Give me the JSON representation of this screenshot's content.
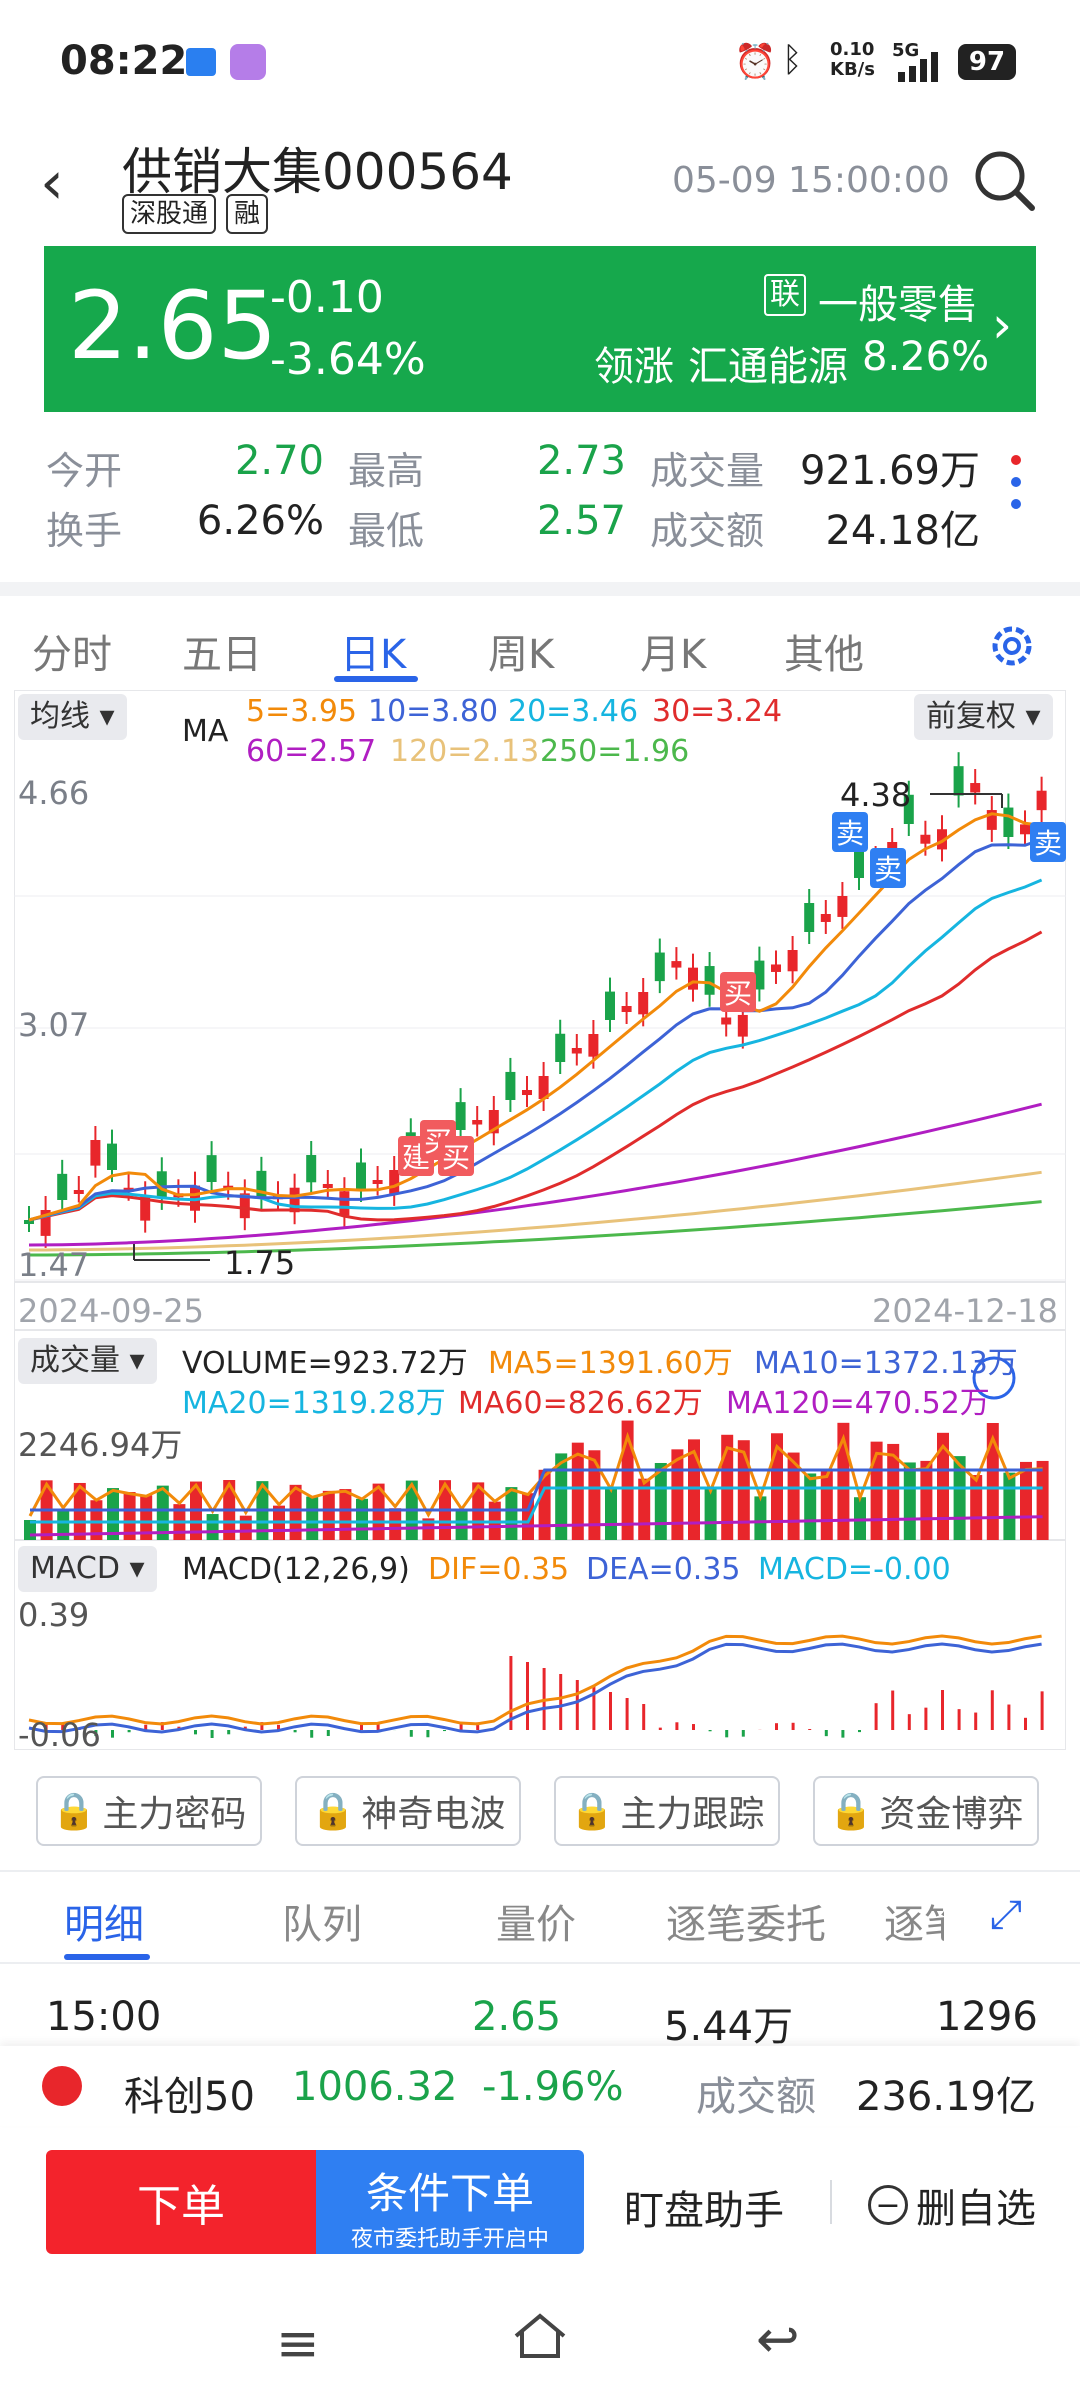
{
  "status": {
    "time": "08:22",
    "net_speed_top": "0.10",
    "net_speed_bottom": "KB/s",
    "signal": "5G",
    "battery": "97"
  },
  "header": {
    "title": "供销大集000564",
    "tag1": "深股通",
    "tag2": "融",
    "timestamp": "05-09 15:00:00"
  },
  "banner": {
    "price": "2.65",
    "change": "-0.10",
    "change_pct": "-3.64%",
    "sector_badge": "联",
    "sector": "一般零售",
    "leader_label": "领涨",
    "leader_name": "汇通能源",
    "leader_pct": "8.26%"
  },
  "stats": {
    "open_label": "今开",
    "open_value": "2.70",
    "high_label": "最高",
    "high_value": "2.73",
    "volume_label": "成交量",
    "volume_value": "921.69万",
    "turnover_label": "换手",
    "turnover_value": "6.26%",
    "low_label": "最低",
    "low_value": "2.57",
    "amount_label": "成交额",
    "amount_value": "24.18亿"
  },
  "tabs": [
    "分时",
    "五日",
    "日K",
    "周K",
    "月K",
    "其他"
  ],
  "kline": {
    "ma_selector": "均线",
    "ma_label": "MA",
    "ma5": "5=3.95",
    "ma10": "10=3.80",
    "ma20": "20=3.46",
    "ma30": "30=3.24",
    "ma60": "60=2.57",
    "ma120": "120=2.13",
    "ma250": "250=1.96",
    "adjust": "前复权",
    "y_top": "4.66",
    "y_mid": "3.07",
    "y_bottom": "1.47",
    "max_label": "4.38",
    "min_label": "1.75",
    "date_start": "2024-09-25",
    "date_end": "2024-12-18",
    "signal_sell": "卖",
    "signal_buy": "买",
    "signal_build": "建",
    "colors": {
      "up": "#e8262b",
      "down": "#1aa34a",
      "ma5": "#f28a0a",
      "ma10": "#3d63d6",
      "ma20": "#16b5e0",
      "ma30": "#e02c2c",
      "ma60": "#b01ec2",
      "ma120": "#e8c27a",
      "ma250": "#4cb84c"
    }
  },
  "volume": {
    "selector": "成交量",
    "vol": "VOLUME=923.72万",
    "ma5": "MA5=1391.60万",
    "ma10": "MA10=1372.13万",
    "ma20": "MA20=1319.28万",
    "ma60": "MA60=826.62万",
    "ma120": "MA120=470.52万",
    "y_top": "2246.94万"
  },
  "macd": {
    "selector": "MACD",
    "params": "MACD(12,26,9)",
    "dif": "DIF=0.35",
    "dea": "DEA=0.35",
    "macd": "MACD=-0.00",
    "y_top": "0.39",
    "y_bottom": "-0.06"
  },
  "features": [
    "主力密码",
    "神奇电波",
    "主力跟踪",
    "资金博弈"
  ],
  "detail_tabs": [
    "明细",
    "队列",
    "量价",
    "逐笔委托",
    "逐笔"
  ],
  "trade_row": {
    "time": "15:00",
    "price": "2.65",
    "volume": "5.44万",
    "count": "1296"
  },
  "index_bar": {
    "name": "科创50",
    "value": "1006.32",
    "pct": "-1.96%",
    "amount_label": "成交额",
    "amount": "236.19亿"
  },
  "actions": {
    "order": "下单",
    "conditional": "条件下单",
    "conditional_sub": "夜市委托助手开启中",
    "watch": "盯盘助手",
    "remove": "删自选"
  }
}
